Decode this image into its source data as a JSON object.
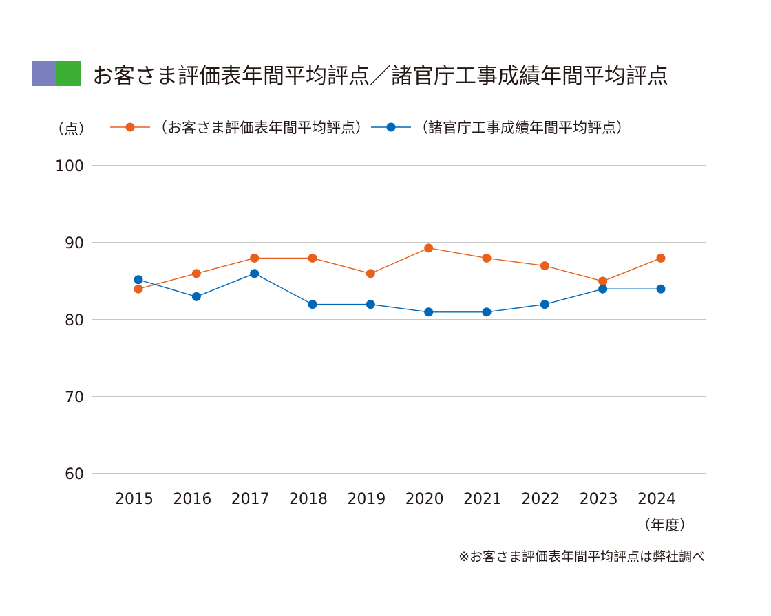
{
  "colors": {
    "title_swatch_left": "#7b7fbd",
    "title_swatch_right": "#3cb034",
    "customer_series": "#e8601c",
    "agency_series": "#0068b7",
    "gridline": "#8c8c8c"
  },
  "note": "※お客さま評価表年間平均評点は弊社調べ",
  "chart_data": {
    "type": "line",
    "title": "お客さま評価表年間平均評点／諸官庁工事成績年間平均評点",
    "ylabel": "（点）",
    "xlabel": "（年度）",
    "ylim": [
      60,
      100
    ],
    "yticks": [
      100,
      90,
      80,
      70,
      60
    ],
    "grid": true,
    "legend_position": "top",
    "x": [
      "2015",
      "2016",
      "2017",
      "2018",
      "2019",
      "2020",
      "2021",
      "2022",
      "2023",
      "2024"
    ],
    "series": [
      {
        "name": "（お客さま評価表年間平均評点）",
        "color": "#e8601c",
        "values": [
          84,
          86,
          88,
          88,
          86,
          89.3,
          88,
          87,
          85,
          88
        ]
      },
      {
        "name": "（諸官庁工事成績年間平均評点）",
        "color": "#0068b7",
        "values": [
          85.2,
          83,
          86,
          82,
          82,
          81,
          81,
          82,
          84,
          84
        ]
      }
    ]
  }
}
